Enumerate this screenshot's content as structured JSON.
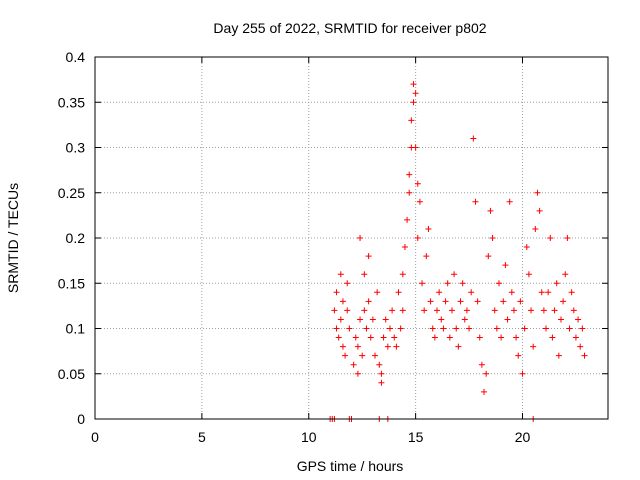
{
  "chart_data": {
    "type": "scatter",
    "title": "Day 255 of 2022, SRMTID for receiver p802",
    "xlabel": "GPS time / hours",
    "ylabel": "SRMTID / TECUs",
    "xlim": [
      0,
      24
    ],
    "ylim": [
      0,
      0.4
    ],
    "x_ticks": [
      0,
      5,
      10,
      15,
      20
    ],
    "x_tick_labels": [
      "0",
      "5",
      "10",
      "15",
      "20"
    ],
    "y_ticks": [
      0,
      0.05,
      0.1,
      0.15,
      0.2,
      0.25,
      0.3,
      0.35,
      0.4
    ],
    "y_tick_labels": [
      "0",
      "0.05",
      "0.1",
      "0.15",
      "0.2",
      "0.25",
      "0.3",
      "0.35",
      "0.4"
    ],
    "grid": true,
    "marker": "+",
    "series_color": "#ff0000",
    "series": [
      {
        "name": "SRMTID",
        "points": [
          [
            11.0,
            0.0
          ],
          [
            11.1,
            0.0
          ],
          [
            11.2,
            0.0
          ],
          [
            11.9,
            0.0
          ],
          [
            12.0,
            0.0
          ],
          [
            13.3,
            0.0
          ],
          [
            13.7,
            0.0
          ],
          [
            20.5,
            0.0
          ],
          [
            11.2,
            0.12
          ],
          [
            11.3,
            0.1
          ],
          [
            11.3,
            0.14
          ],
          [
            11.4,
            0.09
          ],
          [
            11.5,
            0.16
          ],
          [
            11.5,
            0.11
          ],
          [
            11.6,
            0.08
          ],
          [
            11.6,
            0.13
          ],
          [
            11.7,
            0.07
          ],
          [
            11.8,
            0.12
          ],
          [
            11.8,
            0.15
          ],
          [
            11.9,
            0.1
          ],
          [
            12.1,
            0.06
          ],
          [
            12.2,
            0.09
          ],
          [
            12.3,
            0.08
          ],
          [
            12.3,
            0.05
          ],
          [
            12.4,
            0.11
          ],
          [
            12.4,
            0.2
          ],
          [
            12.5,
            0.07
          ],
          [
            12.6,
            0.12
          ],
          [
            12.6,
            0.16
          ],
          [
            12.7,
            0.1
          ],
          [
            12.8,
            0.13
          ],
          [
            12.8,
            0.18
          ],
          [
            12.9,
            0.09
          ],
          [
            13.0,
            0.11
          ],
          [
            13.1,
            0.07
          ],
          [
            13.2,
            0.14
          ],
          [
            13.3,
            0.06
          ],
          [
            13.4,
            0.05
          ],
          [
            13.4,
            0.04
          ],
          [
            13.5,
            0.09
          ],
          [
            13.6,
            0.11
          ],
          [
            13.7,
            0.08
          ],
          [
            13.8,
            0.1
          ],
          [
            13.9,
            0.12
          ],
          [
            14.0,
            0.09
          ],
          [
            14.1,
            0.08
          ],
          [
            14.2,
            0.14
          ],
          [
            14.3,
            0.1
          ],
          [
            14.4,
            0.16
          ],
          [
            14.4,
            0.12
          ],
          [
            14.5,
            0.19
          ],
          [
            14.6,
            0.22
          ],
          [
            14.7,
            0.25
          ],
          [
            14.7,
            0.27
          ],
          [
            14.8,
            0.3
          ],
          [
            14.8,
            0.33
          ],
          [
            14.9,
            0.35
          ],
          [
            14.9,
            0.37
          ],
          [
            15.0,
            0.36
          ],
          [
            15.0,
            0.3
          ],
          [
            15.1,
            0.26
          ],
          [
            15.1,
            0.2
          ],
          [
            15.2,
            0.24
          ],
          [
            15.3,
            0.15
          ],
          [
            15.4,
            0.12
          ],
          [
            15.5,
            0.18
          ],
          [
            15.6,
            0.21
          ],
          [
            15.7,
            0.13
          ],
          [
            15.8,
            0.1
          ],
          [
            15.9,
            0.09
          ],
          [
            16.0,
            0.12
          ],
          [
            16.1,
            0.14
          ],
          [
            16.2,
            0.11
          ],
          [
            16.3,
            0.1
          ],
          [
            16.4,
            0.13
          ],
          [
            16.5,
            0.15
          ],
          [
            16.6,
            0.09
          ],
          [
            16.7,
            0.12
          ],
          [
            16.8,
            0.16
          ],
          [
            16.9,
            0.1
          ],
          [
            17.0,
            0.08
          ],
          [
            17.1,
            0.13
          ],
          [
            17.2,
            0.15
          ],
          [
            17.3,
            0.11
          ],
          [
            17.4,
            0.12
          ],
          [
            17.5,
            0.1
          ],
          [
            17.6,
            0.14
          ],
          [
            17.7,
            0.31
          ],
          [
            17.8,
            0.24
          ],
          [
            17.9,
            0.13
          ],
          [
            18.0,
            0.09
          ],
          [
            18.1,
            0.06
          ],
          [
            18.2,
            0.03
          ],
          [
            18.3,
            0.05
          ],
          [
            18.4,
            0.18
          ],
          [
            18.5,
            0.23
          ],
          [
            18.6,
            0.2
          ],
          [
            18.7,
            0.12
          ],
          [
            18.8,
            0.1
          ],
          [
            18.9,
            0.15
          ],
          [
            19.0,
            0.09
          ],
          [
            19.1,
            0.13
          ],
          [
            19.2,
            0.17
          ],
          [
            19.3,
            0.11
          ],
          [
            19.4,
            0.24
          ],
          [
            19.5,
            0.14
          ],
          [
            19.6,
            0.12
          ],
          [
            19.7,
            0.09
          ],
          [
            19.8,
            0.07
          ],
          [
            19.9,
            0.13
          ],
          [
            20.0,
            0.05
          ],
          [
            20.1,
            0.1
          ],
          [
            20.2,
            0.19
          ],
          [
            20.3,
            0.16
          ],
          [
            20.4,
            0.12
          ],
          [
            20.5,
            0.08
          ],
          [
            20.6,
            0.21
          ],
          [
            20.7,
            0.25
          ],
          [
            20.8,
            0.23
          ],
          [
            20.9,
            0.14
          ],
          [
            21.0,
            0.12
          ],
          [
            21.1,
            0.1
          ],
          [
            21.2,
            0.14
          ],
          [
            21.3,
            0.2
          ],
          [
            21.4,
            0.09
          ],
          [
            21.5,
            0.12
          ],
          [
            21.6,
            0.15
          ],
          [
            21.7,
            0.07
          ],
          [
            21.8,
            0.11
          ],
          [
            21.9,
            0.13
          ],
          [
            22.0,
            0.16
          ],
          [
            22.1,
            0.2
          ],
          [
            22.2,
            0.1
          ],
          [
            22.3,
            0.14
          ],
          [
            22.4,
            0.12
          ],
          [
            22.5,
            0.09
          ],
          [
            22.6,
            0.11
          ],
          [
            22.7,
            0.08
          ],
          [
            22.8,
            0.1
          ],
          [
            22.9,
            0.07
          ]
        ]
      }
    ]
  }
}
